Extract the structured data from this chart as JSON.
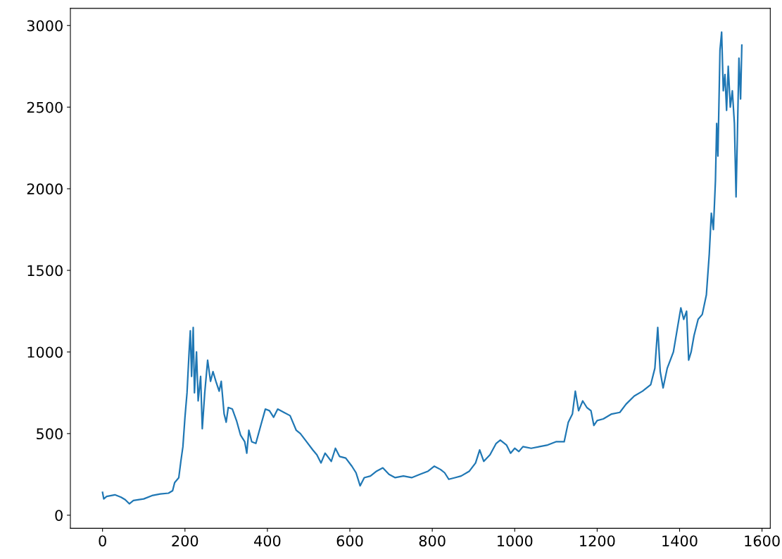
{
  "chart_data": {
    "type": "line",
    "xlim": [
      -78,
      1620
    ],
    "ylim": [
      -80,
      3105
    ],
    "xticks": [
      0,
      200,
      400,
      600,
      800,
      1000,
      1200,
      1400,
      1600
    ],
    "yticks": [
      0,
      500,
      1000,
      1500,
      2000,
      2500,
      3000
    ],
    "grid": false,
    "legend": false,
    "marker": "none",
    "line_style": "solid",
    "series": [
      {
        "color": "#1f77b4",
        "x": [
          0,
          3,
          10,
          30,
          45,
          55,
          65,
          75,
          100,
          120,
          140,
          160,
          170,
          175,
          185,
          190,
          195,
          200,
          205,
          210,
          213,
          216,
          220,
          223,
          228,
          232,
          238,
          242,
          248,
          255,
          262,
          268,
          275,
          283,
          288,
          295,
          300,
          305,
          315,
          325,
          335,
          345,
          350,
          355,
          362,
          372,
          385,
          395,
          405,
          415,
          425,
          440,
          455,
          470,
          480,
          495,
          510,
          520,
          530,
          540,
          555,
          565,
          575,
          590,
          605,
          615,
          625,
          635,
          650,
          665,
          680,
          695,
          710,
          730,
          750,
          770,
          790,
          805,
          820,
          830,
          840,
          855,
          870,
          890,
          905,
          915,
          925,
          940,
          955,
          965,
          980,
          990,
          1000,
          1010,
          1020,
          1040,
          1060,
          1080,
          1100,
          1120,
          1130,
          1140,
          1147,
          1155,
          1165,
          1175,
          1185,
          1192,
          1200,
          1215,
          1235,
          1255,
          1270,
          1290,
          1310,
          1330,
          1340,
          1347,
          1353,
          1360,
          1370,
          1385,
          1395,
          1403,
          1410,
          1417,
          1422,
          1428,
          1435,
          1445,
          1455,
          1465,
          1472,
          1477,
          1482,
          1487,
          1490,
          1493,
          1498,
          1502,
          1506,
          1510,
          1514,
          1518,
          1523,
          1528,
          1533,
          1537,
          1540,
          1544,
          1548,
          1551
        ],
        "values": [
          140,
          100,
          115,
          125,
          110,
          95,
          70,
          90,
          100,
          120,
          130,
          135,
          150,
          200,
          230,
          330,
          420,
          600,
          750,
          1000,
          1130,
          850,
          1150,
          750,
          1000,
          700,
          850,
          530,
          750,
          950,
          820,
          880,
          820,
          760,
          820,
          620,
          570,
          660,
          650,
          580,
          490,
          450,
          380,
          520,
          450,
          440,
          560,
          650,
          640,
          600,
          650,
          630,
          610,
          520,
          500,
          450,
          400,
          370,
          320,
          380,
          330,
          410,
          360,
          350,
          300,
          260,
          180,
          230,
          240,
          270,
          290,
          250,
          230,
          240,
          230,
          250,
          270,
          300,
          280,
          260,
          220,
          230,
          240,
          270,
          320,
          400,
          330,
          370,
          440,
          460,
          430,
          380,
          410,
          390,
          420,
          410,
          420,
          430,
          450,
          450,
          570,
          620,
          760,
          640,
          700,
          660,
          640,
          550,
          580,
          590,
          620,
          630,
          680,
          730,
          760,
          800,
          900,
          1150,
          880,
          780,
          900,
          1000,
          1150,
          1270,
          1200,
          1250,
          950,
          1000,
          1100,
          1200,
          1230,
          1350,
          1600,
          1850,
          1750,
          2050,
          2400,
          2200,
          2850,
          2960,
          2600,
          2700,
          2480,
          2750,
          2500,
          2600,
          2400,
          1950,
          2300,
          2800,
          2550,
          2880
        ]
      }
    ]
  }
}
